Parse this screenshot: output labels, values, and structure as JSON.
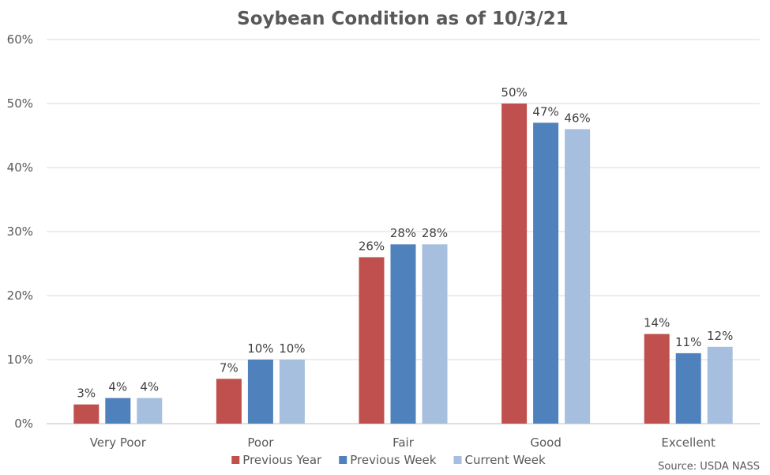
{
  "chart_data": {
    "type": "bar",
    "title": "Soybean Condition as of 10/3/21",
    "xlabel": "",
    "ylabel": "",
    "ylim": [
      0,
      60
    ],
    "yticks": [
      "0%",
      "10%",
      "20%",
      "30%",
      "40%",
      "50%",
      "60%"
    ],
    "categories": [
      "Very Poor",
      "Poor",
      "Fair",
      "Good",
      "Excellent"
    ],
    "series": [
      {
        "name": "Previous Year",
        "color": "#c0504d",
        "values": [
          3,
          7,
          26,
          50,
          14
        ],
        "labels": [
          "3%",
          "7%",
          "26%",
          "50%",
          "14%"
        ]
      },
      {
        "name": "Previous Week",
        "color": "#4f81bd",
        "values": [
          4,
          10,
          28,
          47,
          11
        ],
        "labels": [
          "4%",
          "10%",
          "28%",
          "47%",
          "11%"
        ]
      },
      {
        "name": "Current Week",
        "color": "#a7bfde",
        "values": [
          4,
          10,
          28,
          46,
          12
        ],
        "labels": [
          "4%",
          "10%",
          "28%",
          "46%",
          "12%"
        ]
      }
    ],
    "grid": true,
    "legend": "bottom",
    "source": "Source: USDA NASS"
  }
}
